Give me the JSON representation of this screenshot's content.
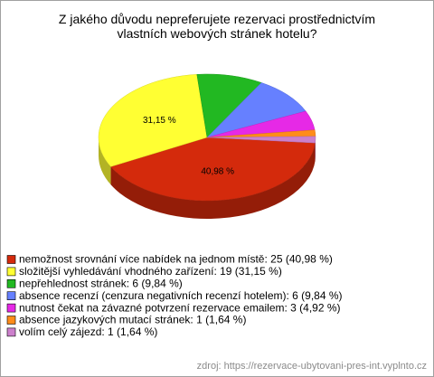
{
  "chart_data": {
    "type": "pie3d",
    "title": "Z jakého důvodu nepreferujete rezervaci prostřednictvím vlastních webových stránek hotelu?",
    "categories": [
      "nemožnost srovnání více nabídek na jednom místě: 25 (40,98 %)",
      "složitější vyhledávání vhodného zařízení: 19 (31,15 %)",
      "nepřehlednost stránek: 6 (9,84 %)",
      "absence recenzí (cenzura negativních recenzí hotelem): 6 (9,84 %)",
      "nutnost čekat na závazné potvrzení rezervace emailem: 3 (4,92 %)",
      "absence jazykových mutací stránek: 1 (1,64 %)",
      "volím celý zájezd: 1 (1,64 %)"
    ],
    "values": [
      40.98,
      31.15,
      9.84,
      9.84,
      4.92,
      1.64,
      1.64
    ],
    "value_labels": [
      "40,98 %",
      "31,15 %",
      null,
      null,
      null,
      null,
      null
    ],
    "colors": [
      "#d42a0c",
      "#ffff33",
      "#22b822",
      "#6680ff",
      "#e629e6",
      "#ff8c1a",
      "#cc80cc"
    ],
    "source": "zdroj: https://rezervace-ubytovani-pres-int.vyplnto.cz"
  }
}
